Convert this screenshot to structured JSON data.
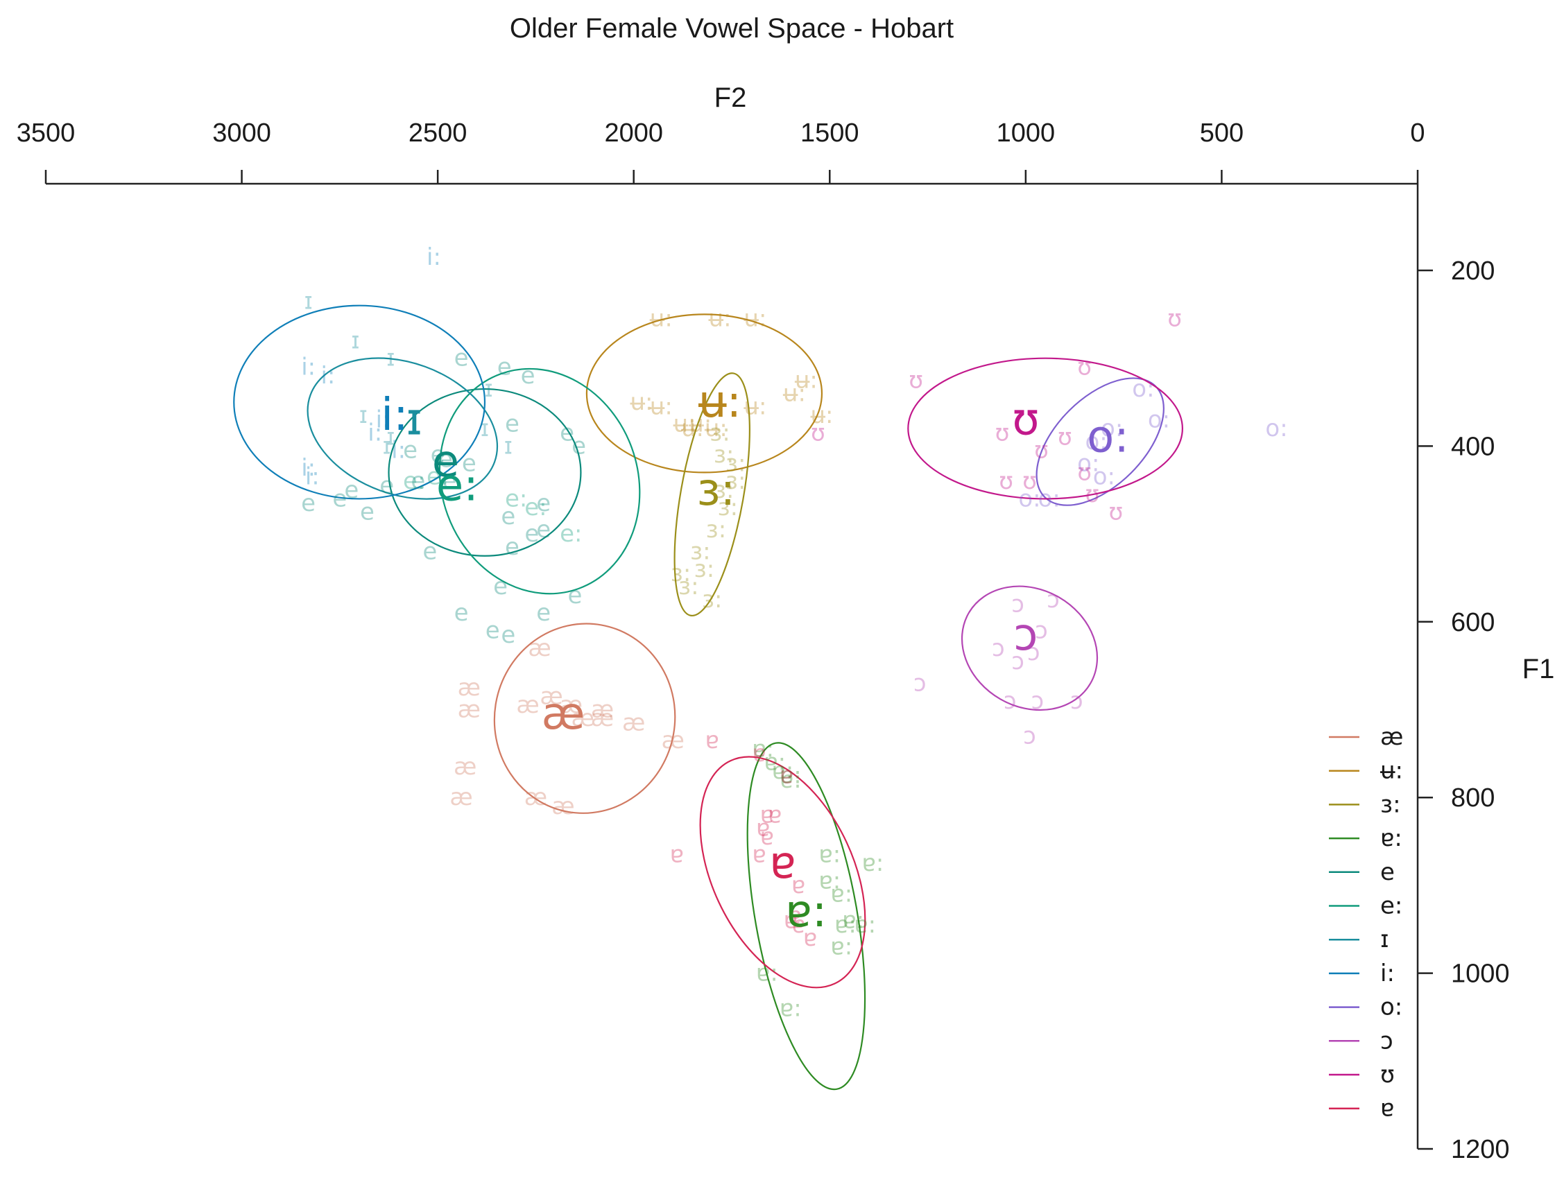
{
  "chart_data": {
    "type": "scatter",
    "title": "Older Female Vowel Space - Hobart",
    "xlabel": "F2",
    "ylabel": "F1",
    "xlim": [
      3500,
      0
    ],
    "ylim": [
      100,
      1200
    ],
    "x_ticks": [
      3500,
      3000,
      2500,
      2000,
      1500,
      1000,
      500,
      0
    ],
    "y_ticks": [
      200,
      400,
      600,
      800,
      1000,
      1200
    ],
    "legend_position": "bottom-right",
    "series": [
      {
        "name": "æ",
        "color": "#d17a62",
        "centroid": {
          "f2": 2180,
          "f1": 705
        },
        "ellipse": {
          "f2": 2125,
          "f1": 710,
          "rx_f2": 230,
          "ry_f1": 108,
          "angle": 10
        },
        "tokens": [
          [
            2240,
            630
          ],
          [
            2420,
            675
          ],
          [
            2420,
            700
          ],
          [
            2270,
            695
          ],
          [
            2210,
            685
          ],
          [
            2160,
            695
          ],
          [
            2130,
            710
          ],
          [
            2080,
            710
          ],
          [
            2000,
            715
          ],
          [
            2080,
            700
          ],
          [
            1900,
            735
          ],
          [
            2430,
            765
          ],
          [
            2440,
            800
          ],
          [
            2250,
            800
          ],
          [
            2180,
            810
          ]
        ]
      },
      {
        "name": "ʉ:",
        "color": "#b8861d",
        "centroid": {
          "f2": 1780,
          "f1": 350
        },
        "ellipse": {
          "f2": 1820,
          "f1": 340,
          "rx_f2": 300,
          "ry_f1": 90,
          "angle": 0
        },
        "tokens": [
          [
            1930,
            255
          ],
          [
            1780,
            255
          ],
          [
            1690,
            255
          ],
          [
            1560,
            325
          ],
          [
            1590,
            340
          ],
          [
            1980,
            350
          ],
          [
            1930,
            355
          ],
          [
            1690,
            355
          ],
          [
            1520,
            365
          ],
          [
            1870,
            375
          ],
          [
            1850,
            380
          ],
          [
            1830,
            375
          ],
          [
            1790,
            380
          ]
        ]
      },
      {
        "name": "ɜ:",
        "color": "#9b8f1a",
        "centroid": {
          "f2": 1790,
          "f1": 450
        },
        "ellipse": {
          "f2": 1800,
          "f1": 455,
          "rx_f2": 80,
          "ry_f1": 140,
          "angle": 10
        },
        "tokens": [
          [
            1780,
            385
          ],
          [
            1770,
            410
          ],
          [
            1740,
            420
          ],
          [
            1740,
            440
          ],
          [
            1770,
            450
          ],
          [
            1760,
            470
          ],
          [
            1790,
            495
          ],
          [
            1830,
            520
          ],
          [
            1820,
            540
          ],
          [
            1880,
            545
          ],
          [
            1860,
            560
          ],
          [
            1800,
            575
          ]
        ]
      },
      {
        "name": "ɐ:",
        "color": "#2e8b23",
        "centroid": {
          "f2": 1560,
          "f1": 930
        },
        "ellipse": {
          "f2": 1560,
          "f1": 935,
          "rx_f2": 130,
          "ry_f1": 200,
          "angle": -10
        },
        "tokens": [
          [
            1670,
            745
          ],
          [
            1640,
            760
          ],
          [
            1620,
            770
          ],
          [
            1600,
            775
          ],
          [
            1600,
            780
          ],
          [
            1500,
            865
          ],
          [
            1390,
            875
          ],
          [
            1500,
            895
          ],
          [
            1470,
            910
          ],
          [
            1440,
            940
          ],
          [
            1460,
            945
          ],
          [
            1410,
            945
          ],
          [
            1470,
            970
          ],
          [
            1660,
            1000
          ],
          [
            1600,
            1040
          ]
        ]
      },
      {
        "name": "e",
        "color": "#0c8a7c",
        "centroid": {
          "f2": 2480,
          "f1": 418
        },
        "ellipse": {
          "f2": 2380,
          "f1": 430,
          "rx_f2": 245,
          "ry_f1": 95,
          "angle": 0
        },
        "tokens": [
          [
            2440,
            300
          ],
          [
            2330,
            310
          ],
          [
            2270,
            320
          ],
          [
            2310,
            375
          ],
          [
            2170,
            385
          ],
          [
            2140,
            400
          ],
          [
            2570,
            405
          ],
          [
            2500,
            410
          ],
          [
            2480,
            415
          ],
          [
            2420,
            420
          ],
          [
            2550,
            440
          ],
          [
            2470,
            440
          ],
          [
            2630,
            445
          ],
          [
            2720,
            450
          ],
          [
            2750,
            460
          ],
          [
            2230,
            465
          ],
          [
            2830,
            465
          ],
          [
            2320,
            480
          ],
          [
            2230,
            495
          ],
          [
            2260,
            500
          ],
          [
            2680,
            475
          ],
          [
            2310,
            515
          ],
          [
            2520,
            520
          ],
          [
            2340,
            560
          ],
          [
            2150,
            570
          ],
          [
            2230,
            590
          ],
          [
            2440,
            590
          ],
          [
            2360,
            610
          ],
          [
            2320,
            615
          ]
        ]
      },
      {
        "name": "e:",
        "color": "#109c7c",
        "centroid": {
          "f2": 2450,
          "f1": 445
        },
        "ellipse": {
          "f2": 2240,
          "f1": 440,
          "rx_f2": 250,
          "ry_f1": 130,
          "angle": -20
        },
        "tokens": [
          [
            2500,
            435
          ],
          [
            2560,
            440
          ],
          [
            2300,
            460
          ],
          [
            2250,
            470
          ],
          [
            2160,
            500
          ]
        ]
      },
      {
        "name": "ɪ",
        "color": "#1a8e9e",
        "centroid": {
          "f2": 2560,
          "f1": 370
        },
        "ellipse": {
          "f2": 2590,
          "f1": 380,
          "rx_f2": 250,
          "ry_f1": 75,
          "angle": 20
        },
        "tokens": [
          [
            2830,
            235
          ],
          [
            2710,
            280
          ],
          [
            2620,
            300
          ],
          [
            2370,
            335
          ],
          [
            2380,
            380
          ],
          [
            2690,
            365
          ],
          [
            2620,
            390
          ],
          [
            2630,
            400
          ],
          [
            2320,
            400
          ]
        ]
      },
      {
        "name": "i:",
        "color": "#0f7fb8",
        "centroid": {
          "f2": 2610,
          "f1": 365
        },
        "ellipse": {
          "f2": 2700,
          "f1": 350,
          "rx_f2": 320,
          "ry_f1": 110,
          "angle": 0
        },
        "tokens": [
          [
            2510,
            185
          ],
          [
            2830,
            310
          ],
          [
            2780,
            320
          ],
          [
            2640,
            370
          ],
          [
            2660,
            385
          ],
          [
            2830,
            425
          ],
          [
            2820,
            435
          ],
          [
            2600,
            405
          ]
        ]
      },
      {
        "name": "o:",
        "color": "#7e5fcf",
        "centroid": {
          "f2": 790,
          "f1": 390
        },
        "ellipse": {
          "f2": 810,
          "f1": 395,
          "rx_f2": 200,
          "ry_f1": 50,
          "angle": -45
        },
        "tokens": [
          [
            700,
            335
          ],
          [
            660,
            370
          ],
          [
            780,
            380
          ],
          [
            820,
            395
          ],
          [
            840,
            420
          ],
          [
            360,
            380
          ],
          [
            800,
            435
          ],
          [
            940,
            460
          ],
          [
            990,
            460
          ]
        ]
      },
      {
        "name": "ɔ",
        "color": "#b446b4",
        "centroid": {
          "f2": 1000,
          "f1": 615
        },
        "ellipse": {
          "f2": 990,
          "f1": 630,
          "rx_f2": 150,
          "ry_f1": 80,
          "angle": -60
        },
        "tokens": [
          [
            1020,
            580
          ],
          [
            930,
            575
          ],
          [
            960,
            610
          ],
          [
            1070,
            630
          ],
          [
            980,
            635
          ],
          [
            1020,
            645
          ],
          [
            1270,
            670
          ],
          [
            1040,
            690
          ],
          [
            970,
            690
          ],
          [
            870,
            690
          ],
          [
            990,
            730
          ]
        ]
      },
      {
        "name": "ʊ",
        "color": "#c2188b",
        "centroid": {
          "f2": 1000,
          "f1": 370
        },
        "ellipse": {
          "f2": 950,
          "f1": 380,
          "rx_f2": 350,
          "ry_f1": 80,
          "angle": 0
        },
        "tokens": [
          [
            620,
            255
          ],
          [
            850,
            310
          ],
          [
            1280,
            325
          ],
          [
            1530,
            385
          ],
          [
            1060,
            385
          ],
          [
            900,
            390
          ],
          [
            960,
            405
          ],
          [
            990,
            440
          ],
          [
            1050,
            440
          ],
          [
            850,
            430
          ],
          [
            830,
            455
          ],
          [
            770,
            475
          ]
        ]
      },
      {
        "name": "ɐ",
        "color": "#d42454",
        "centroid": {
          "f2": 1620,
          "f1": 875
        },
        "ellipse": {
          "f2": 1620,
          "f1": 885,
          "rx_f2": 180,
          "ry_f1": 140,
          "angle": -25
        },
        "tokens": [
          [
            1800,
            735
          ],
          [
            1680,
            750
          ],
          [
            1610,
            775
          ],
          [
            1640,
            820
          ],
          [
            1660,
            820
          ],
          [
            1670,
            835
          ],
          [
            1660,
            845
          ],
          [
            1680,
            865
          ],
          [
            1890,
            865
          ],
          [
            1580,
            900
          ],
          [
            1590,
            935
          ],
          [
            1600,
            940
          ],
          [
            1580,
            945
          ],
          [
            1550,
            960
          ]
        ]
      }
    ]
  }
}
